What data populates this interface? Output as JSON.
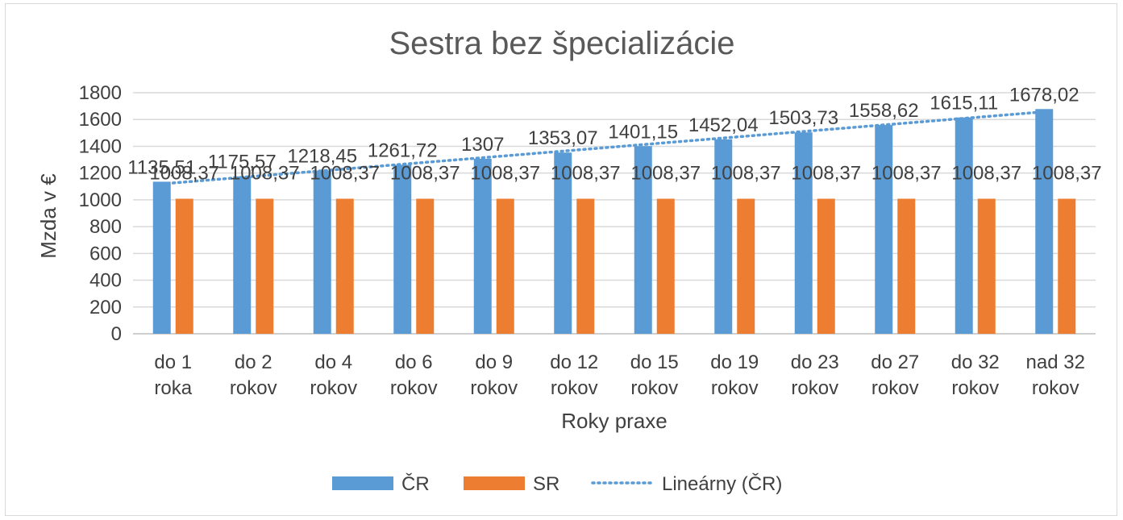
{
  "chart_data": {
    "type": "bar",
    "title": "Sestra bez špecializácie",
    "xlabel": "Roky praxe",
    "ylabel": "Mzda v €",
    "ylim": [
      0,
      1800
    ],
    "yticks": [
      "0",
      "200",
      "400",
      "600",
      "800",
      "1000",
      "1200",
      "1400",
      "1600",
      "1800"
    ],
    "grid": true,
    "legend_position": "bottom",
    "categories": [
      [
        "do 1",
        "roka"
      ],
      [
        "do 2",
        "rokov"
      ],
      [
        "do 4",
        "rokov"
      ],
      [
        "do 6",
        "rokov"
      ],
      [
        "do 9",
        "rokov"
      ],
      [
        "do 12",
        "rokov"
      ],
      [
        "do 15",
        "rokov"
      ],
      [
        "do 19",
        "rokov"
      ],
      [
        "do 23",
        "rokov"
      ],
      [
        "do 27",
        "rokov"
      ],
      [
        "do 32",
        "rokov"
      ],
      [
        "nad 32",
        "rokov"
      ]
    ],
    "series": [
      {
        "name": "ČR",
        "color": "#5b9bd5",
        "values": [
          1135.51,
          1175.57,
          1218.45,
          1261.72,
          1307,
          1353.07,
          1401.15,
          1452.04,
          1503.73,
          1558.62,
          1615.11,
          1678.02
        ],
        "labels": [
          "1135,51",
          "1175,57",
          "1218,45",
          "1261,72",
          "1307",
          "1353,07",
          "1401,15",
          "1452,04",
          "1503,73",
          "1558,62",
          "1615,11",
          "1678,02"
        ]
      },
      {
        "name": "SR",
        "color": "#ed7d31",
        "values": [
          1008.37,
          1008.37,
          1008.37,
          1008.37,
          1008.37,
          1008.37,
          1008.37,
          1008.37,
          1008.37,
          1008.37,
          1008.37,
          1008.37
        ],
        "labels": [
          "1008,37",
          "1008,37",
          "1008,37",
          "1008,37",
          "1008,37",
          "1008,37",
          "1008,37",
          "1008,37",
          "1008,37",
          "1008,37",
          "1008,37",
          "1008,37"
        ]
      }
    ],
    "trendline": {
      "name": "Lineárny (ČR)",
      "color": "#5b9bd5",
      "of_series": "ČR",
      "kind": "linear"
    }
  }
}
